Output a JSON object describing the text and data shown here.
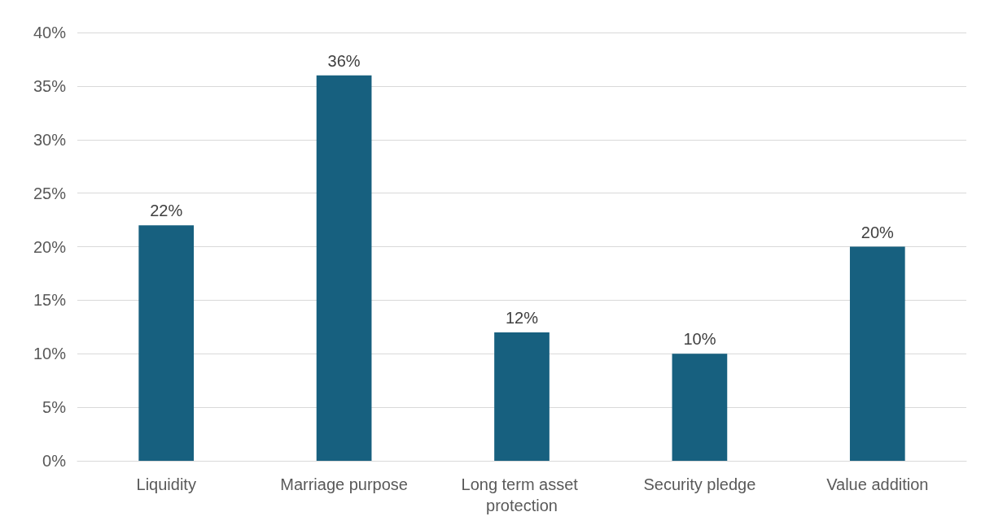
{
  "chart_data": {
    "type": "bar",
    "categories": [
      "Liquidity",
      "Marriage purpose",
      "Long term asset protection",
      "Security pledge",
      "Value addition"
    ],
    "values": [
      22,
      36,
      12,
      10,
      20
    ],
    "color": "#17607f",
    "value_labels": [
      "22%",
      "36%",
      "12%",
      "10%",
      "20%"
    ],
    "ylim": [
      0,
      40
    ],
    "yticks": [
      {
        "value": 0,
        "label": "0%"
      },
      {
        "value": 5,
        "label": "5%"
      },
      {
        "value": 10,
        "label": "10%"
      },
      {
        "value": 15,
        "label": "15%"
      },
      {
        "value": 20,
        "label": "20%"
      },
      {
        "value": 25,
        "label": "25%"
      },
      {
        "value": 30,
        "label": "30%"
      },
      {
        "value": 35,
        "label": "35%"
      },
      {
        "value": 40,
        "label": "40%"
      }
    ],
    "grid": "y"
  }
}
